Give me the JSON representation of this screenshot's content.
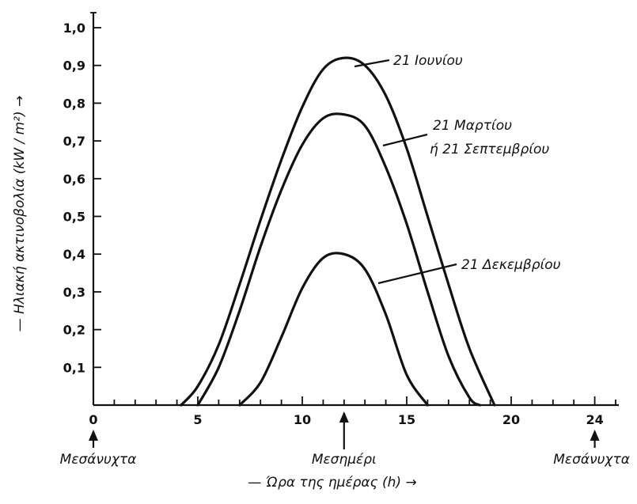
{
  "chart_data": {
    "type": "line",
    "title": "",
    "xlabel": "— Ώρα της ημέρας (h) →",
    "ylabel": "— Ηλιακή ακτινοβολία (kW / m²) →",
    "xlim": [
      0,
      24
    ],
    "ylim": [
      0,
      1.0
    ],
    "x_ticks": [
      0,
      5,
      10,
      15,
      20,
      24
    ],
    "y_ticks": [
      0.1,
      0.2,
      0.3,
      0.4,
      0.5,
      0.6,
      0.7,
      0.8,
      0.9,
      1.0
    ],
    "y_tick_labels": [
      "0,1",
      "0,2",
      "0,3",
      "0,4",
      "0,5",
      "0,6",
      "0,7",
      "0,8",
      "0,9",
      "1,0"
    ],
    "grid": false,
    "series": [
      {
        "name": "21 Ιουνίου",
        "label_lines": [
          "21 Ιουνίου"
        ],
        "x": [
          4.2,
          5,
          6,
          7,
          8,
          9,
          10,
          11,
          12,
          13,
          14,
          15,
          16,
          17,
          18,
          19.2
        ],
        "y": [
          0.0,
          0.05,
          0.16,
          0.32,
          0.49,
          0.65,
          0.79,
          0.89,
          0.92,
          0.9,
          0.82,
          0.68,
          0.5,
          0.32,
          0.15,
          0.0
        ]
      },
      {
        "name": "21 Μαρτίου ή 21 Σεπτεμβρίου",
        "label_lines": [
          "21 Μαρτίου",
          "ή 21 Σεπτεμβρίου"
        ],
        "x": [
          5,
          6,
          7,
          8,
          9,
          10,
          11,
          12,
          13,
          14,
          15,
          16,
          17,
          18,
          18.5
        ],
        "y": [
          0.0,
          0.1,
          0.25,
          0.42,
          0.57,
          0.69,
          0.76,
          0.77,
          0.74,
          0.63,
          0.48,
          0.3,
          0.13,
          0.02,
          0.0
        ]
      },
      {
        "name": "21 Δεκεμβρίου",
        "label_lines": [
          "21 Δεκεμβρίου"
        ],
        "x": [
          7,
          8,
          9,
          10,
          11,
          12,
          13,
          14,
          15,
          16
        ],
        "y": [
          0.0,
          0.06,
          0.18,
          0.31,
          0.39,
          0.4,
          0.36,
          0.24,
          0.08,
          0.0
        ]
      }
    ],
    "annotations": [
      {
        "text": "Μεσάνυχτα",
        "x": 0
      },
      {
        "text": "Μεσημέρι",
        "x": 12
      },
      {
        "text": "Μεσάνυχτα",
        "x": 24
      }
    ]
  }
}
